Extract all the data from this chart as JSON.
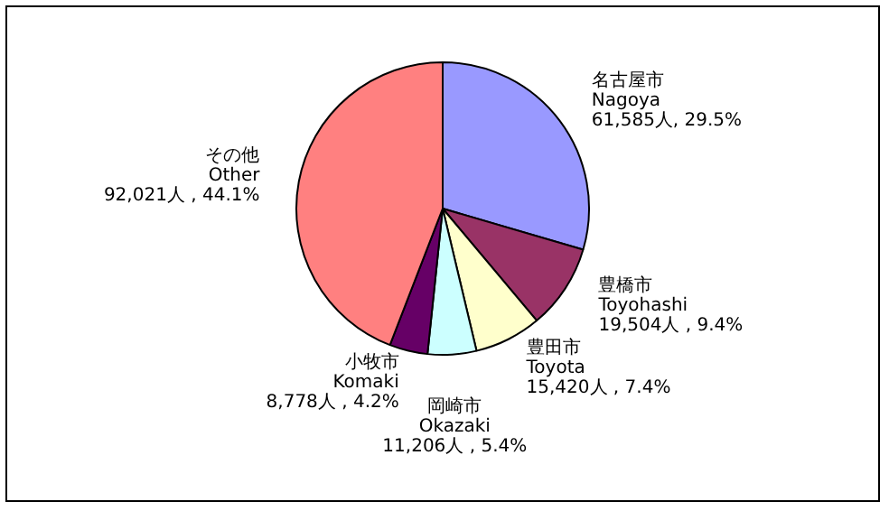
{
  "chart_data": {
    "type": "pie",
    "categories": [
      "名古屋市\nNagoya",
      "豊橋市\nToyohashi",
      "豊田市\nToyota",
      "岡崎市\nOkazaki",
      "小牧市\nKomaki",
      "その他\nOther"
    ],
    "values": [
      61585,
      19504,
      15420,
      11206,
      8778,
      92021
    ],
    "value_labels": [
      "61,585人, 29.5%",
      "19,504人 , 9.4%",
      "15,420人 , 7.4%",
      "11,206人 , 5.4%",
      "8,778人 , 4.2%",
      "92,021人 , 44.1%"
    ],
    "colors": [
      "#9999ff",
      "#993366",
      "#ffffcc",
      "#ccffff",
      "#660066",
      "#ff8080"
    ],
    "legend": false
  }
}
